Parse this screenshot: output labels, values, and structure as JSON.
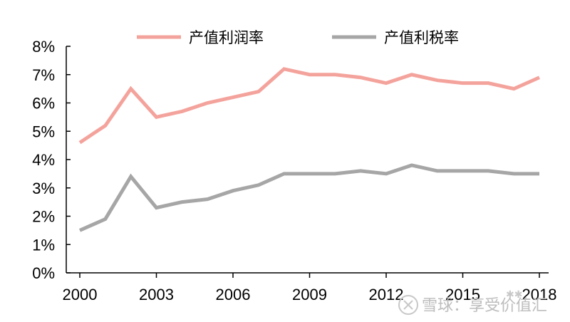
{
  "chart_data": {
    "type": "line",
    "x": [
      2000,
      2001,
      2002,
      2003,
      2004,
      2005,
      2006,
      2007,
      2008,
      2009,
      2010,
      2011,
      2012,
      2013,
      2014,
      2015,
      2016,
      2017,
      2018
    ],
    "x_tick_labels": [
      "2000",
      "2003",
      "2006",
      "2009",
      "2012",
      "2015",
      "2018"
    ],
    "y_tick_labels": [
      "0%",
      "1%",
      "2%",
      "3%",
      "4%",
      "5%",
      "6%",
      "7%",
      "8%"
    ],
    "ylim": [
      0,
      8
    ],
    "y_unit": "%",
    "legend_position": "top",
    "grid": false,
    "series": [
      {
        "name": "产值利润率",
        "color": "#f4a39c",
        "values": [
          4.6,
          5.2,
          6.5,
          5.5,
          5.7,
          6.0,
          6.2,
          6.4,
          7.2,
          7.0,
          7.0,
          6.9,
          6.7,
          7.0,
          6.8,
          6.7,
          6.7,
          6.5,
          6.9
        ]
      },
      {
        "name": "产值利税率",
        "color": "#a6a6a6",
        "values": [
          1.5,
          1.9,
          3.4,
          2.3,
          2.5,
          2.6,
          2.9,
          3.1,
          3.5,
          3.5,
          3.5,
          3.6,
          3.5,
          3.8,
          3.6,
          3.6,
          3.6,
          3.5,
          3.5
        ]
      }
    ]
  },
  "watermark": {
    "text": "雪球：享受价值汇",
    "icon": "snowball-logo-icon"
  }
}
